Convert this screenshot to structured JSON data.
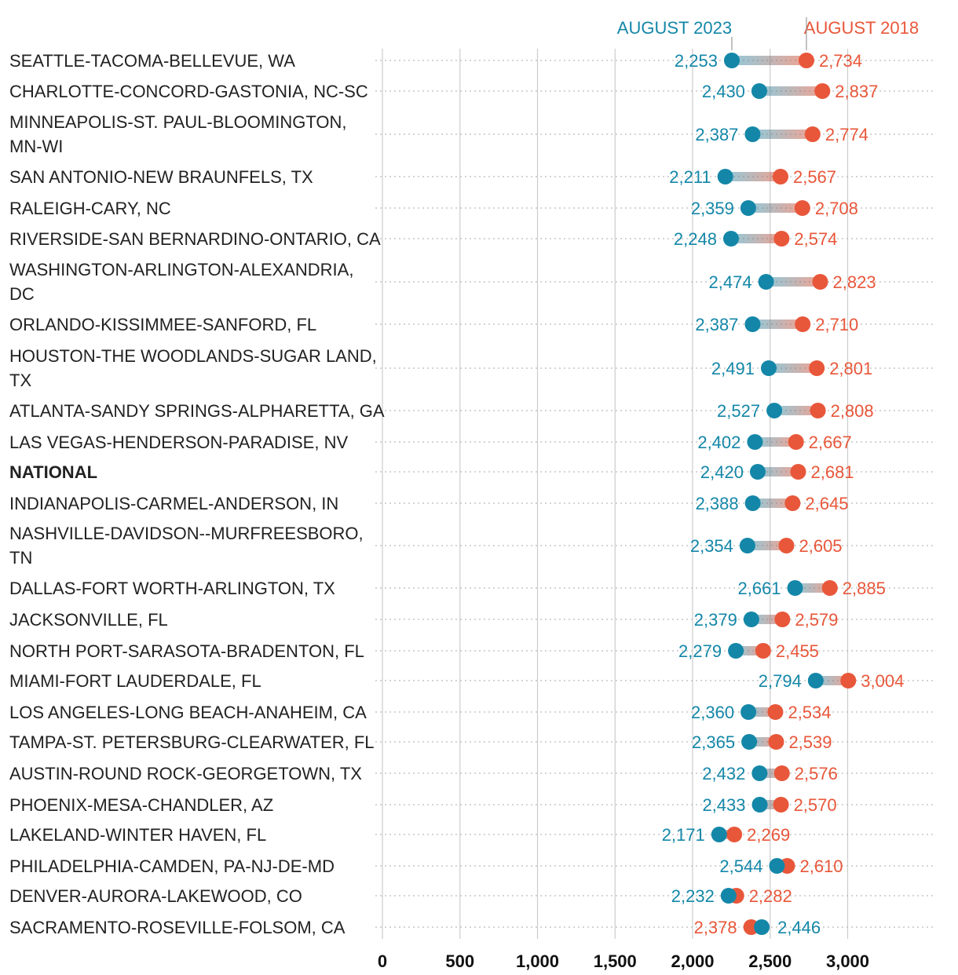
{
  "colors": {
    "series_2023": "#1487a8",
    "series_2018": "#e8573a",
    "gridline": "#cccccc",
    "row_dots": "#bbbbbb",
    "text": "#222222"
  },
  "chart_data": {
    "type": "dumbbell",
    "title": "",
    "xlabel": "",
    "ylabel": "",
    "xlim": [
      0,
      3500
    ],
    "xticks": [
      0,
      500,
      1000,
      1500,
      2000,
      2500,
      3000
    ],
    "xtick_labels": [
      "0",
      "500",
      "1,000",
      "1,500",
      "2,000",
      "2,500",
      "3,000"
    ],
    "legend": {
      "series_2023": "AUGUST 2023",
      "series_2018": "AUGUST 2018",
      "placement": "top"
    },
    "categories": [
      "SEATTLE-TACOMA-BELLEVUE, WA",
      "CHARLOTTE-CONCORD-GASTONIA, NC-SC",
      "MINNEAPOLIS-ST. PAUL-BLOOMINGTON, MN-WI",
      "SAN ANTONIO-NEW BRAUNFELS, TX",
      "RALEIGH-CARY, NC",
      "RIVERSIDE-SAN BERNARDINO-ONTARIO, CA",
      "WASHINGTON-ARLINGTON-ALEXANDRIA, DC",
      "ORLANDO-KISSIMMEE-SANFORD, FL",
      "HOUSTON-THE WOODLANDS-SUGAR LAND, TX",
      "ATLANTA-SANDY SPRINGS-ALPHARETTA, GA",
      "LAS VEGAS-HENDERSON-PARADISE, NV",
      "NATIONAL",
      "INDIANAPOLIS-CARMEL-ANDERSON, IN",
      "NASHVILLE-DAVIDSON--MURFREESBORO, TN",
      "DALLAS-FORT WORTH-ARLINGTON, TX",
      "JACKSONVILLE, FL",
      "NORTH PORT-SARASOTA-BRADENTON, FL",
      "MIAMI-FORT LAUDERDALE, FL",
      "LOS ANGELES-LONG BEACH-ANAHEIM, CA",
      "TAMPA-ST. PETERSBURG-CLEARWATER, FL",
      "AUSTIN-ROUND ROCK-GEORGETOWN, TX",
      "PHOENIX-MESA-CHANDLER, AZ",
      "LAKELAND-WINTER HAVEN, FL",
      "PHILADELPHIA-CAMDEN, PA-NJ-DE-MD",
      "DENVER-AURORA-LAKEWOOD, CO",
      "SACRAMENTO-ROSEVILLE-FOLSOM, CA"
    ],
    "label_lines": [
      [
        "SEATTLE-TACOMA-BELLEVUE, WA"
      ],
      [
        "CHARLOTTE-CONCORD-GASTONIA, NC-SC"
      ],
      [
        "MINNEAPOLIS-ST. PAUL-BLOOMINGTON,",
        "MN-WI"
      ],
      [
        "SAN ANTONIO-NEW BRAUNFELS, TX"
      ],
      [
        "RALEIGH-CARY, NC"
      ],
      [
        "RIVERSIDE-SAN BERNARDINO-ONTARIO, CA"
      ],
      [
        "WASHINGTON-ARLINGTON-ALEXANDRIA,",
        "DC"
      ],
      [
        "ORLANDO-KISSIMMEE-SANFORD, FL"
      ],
      [
        "HOUSTON-THE WOODLANDS-SUGAR LAND,",
        "TX"
      ],
      [
        "ATLANTA-SANDY SPRINGS-ALPHARETTA, GA"
      ],
      [
        "LAS VEGAS-HENDERSON-PARADISE, NV"
      ],
      [
        "NATIONAL"
      ],
      [
        "INDIANAPOLIS-CARMEL-ANDERSON, IN"
      ],
      [
        "NASHVILLE-DAVIDSON--MURFREESBORO,",
        "TN"
      ],
      [
        "DALLAS-FORT WORTH-ARLINGTON, TX"
      ],
      [
        "JACKSONVILLE, FL"
      ],
      [
        "NORTH PORT-SARASOTA-BRADENTON, FL"
      ],
      [
        "MIAMI-FORT LAUDERDALE, FL"
      ],
      [
        "LOS ANGELES-LONG BEACH-ANAHEIM, CA"
      ],
      [
        "TAMPA-ST. PETERSBURG-CLEARWATER, FL"
      ],
      [
        "AUSTIN-ROUND ROCK-GEORGETOWN, TX"
      ],
      [
        "PHOENIX-MESA-CHANDLER, AZ"
      ],
      [
        "LAKELAND-WINTER HAVEN, FL"
      ],
      [
        "PHILADELPHIA-CAMDEN, PA-NJ-DE-MD"
      ],
      [
        "DENVER-AURORA-LAKEWOOD, CO"
      ],
      [
        "SACRAMENTO-ROSEVILLE-FOLSOM, CA"
      ]
    ],
    "highlight_rows": [
      "NATIONAL"
    ],
    "series": [
      {
        "name": "AUGUST 2023",
        "values": [
          2253,
          2430,
          2387,
          2211,
          2359,
          2248,
          2474,
          2387,
          2491,
          2527,
          2402,
          2420,
          2388,
          2354,
          2661,
          2379,
          2279,
          2794,
          2360,
          2365,
          2432,
          2433,
          2171,
          2544,
          2232,
          2446
        ],
        "labels": [
          "2,253",
          "2,430",
          "2,387",
          "2,211",
          "2,359",
          "2,248",
          "2,474",
          "2,387",
          "2,491",
          "2,527",
          "2,402",
          "2,420",
          "2,388",
          "2,354",
          "2,661",
          "2,379",
          "2,279",
          "2,794",
          "2,360",
          "2,365",
          "2,432",
          "2,433",
          "2,171",
          "2,544",
          "2,232",
          "2,446"
        ]
      },
      {
        "name": "AUGUST 2018",
        "values": [
          2734,
          2837,
          2774,
          2567,
          2708,
          2574,
          2823,
          2710,
          2801,
          2808,
          2667,
          2681,
          2645,
          2605,
          2885,
          2579,
          2455,
          3004,
          2534,
          2539,
          2576,
          2570,
          2269,
          2610,
          2282,
          2378
        ],
        "labels": [
          "2,734",
          "2,837",
          "2,774",
          "2,567",
          "2,708",
          "2,574",
          "2,823",
          "2,710",
          "2,801",
          "2,808",
          "2,667",
          "2,681",
          "2,645",
          "2,605",
          "2,885",
          "2,579",
          "2,455",
          "3,004",
          "2,534",
          "2,539",
          "2,576",
          "2,570",
          "2,269",
          "2,610",
          "2,282",
          "2,378"
        ]
      }
    ]
  }
}
